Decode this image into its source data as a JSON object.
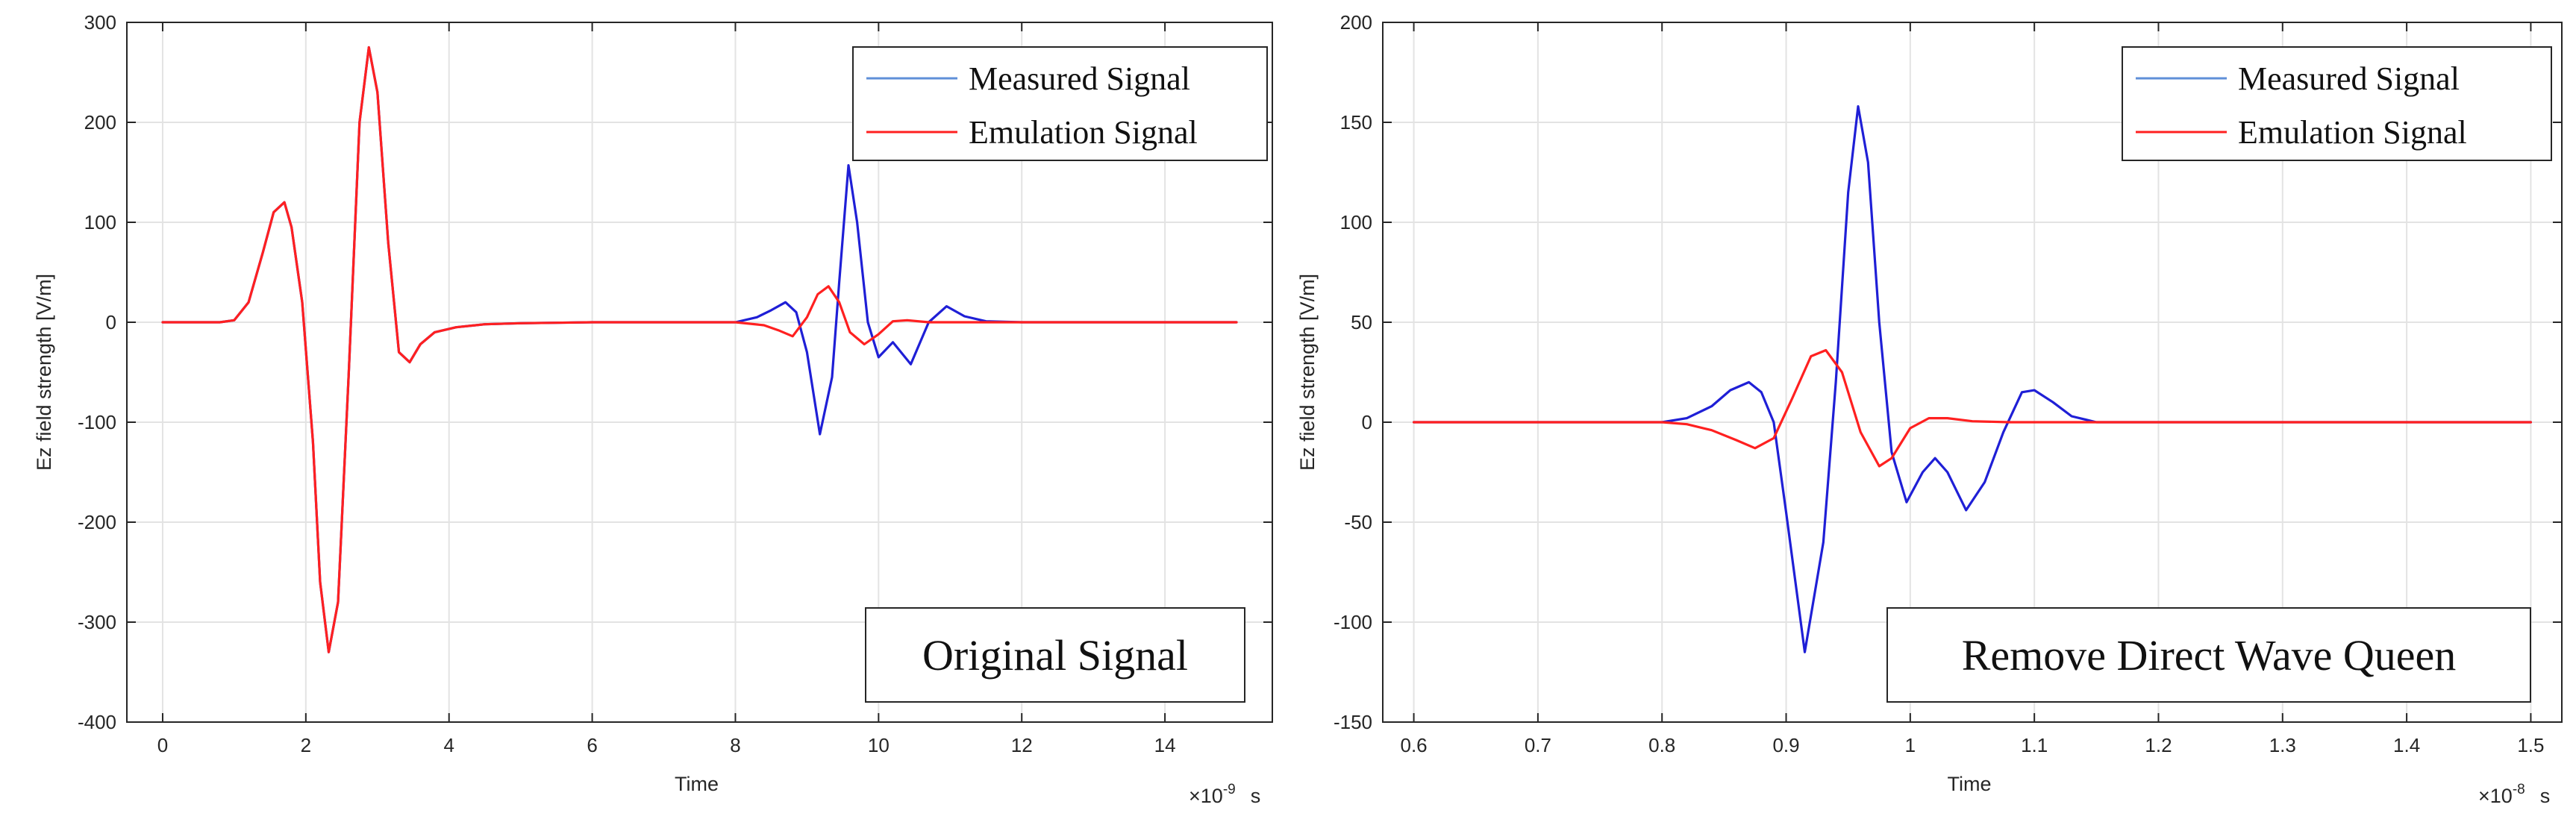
{
  "figure": {
    "panels": [
      "left",
      "right"
    ]
  },
  "chart_data": [
    {
      "type": "line",
      "id": "left",
      "title": "",
      "xlabel": "Time",
      "ylabel": "Ez field strength [V/m]",
      "xlim": [
        -0.5,
        15.5
      ],
      "ylim": [
        -400,
        300
      ],
      "xticks": [
        0,
        2,
        4,
        6,
        8,
        10,
        12,
        14
      ],
      "yticks": [
        -400,
        -300,
        -200,
        -100,
        0,
        100,
        200,
        300
      ],
      "xticklabels": [
        "0",
        "2",
        "4",
        "6",
        "8",
        "10",
        "12",
        "14"
      ],
      "yticklabels": [
        "-400",
        "-300",
        "-200",
        "-100",
        "0",
        "100",
        "200",
        "300"
      ],
      "x_exponent": {
        "mult": "×10",
        "exp": "-9",
        "unit": "s"
      },
      "grid": true,
      "legend": {
        "position": "top-right",
        "entries": [
          "Measured Signal",
          "Emulation Signal"
        ]
      },
      "annotation": "Original Signal",
      "series": [
        {
          "name": "Measured Signal",
          "color": "#1f1fd6",
          "x": [
            0.0,
            0.8,
            1.0,
            1.2,
            1.4,
            1.55,
            1.7,
            1.8,
            1.95,
            2.1,
            2.2,
            2.32,
            2.45,
            2.6,
            2.75,
            2.88,
            3.0,
            3.15,
            3.3,
            3.45,
            3.6,
            3.8,
            4.1,
            4.5,
            5.0,
            6.0,
            7.0,
            8.0,
            8.3,
            8.5,
            8.7,
            8.85,
            9.0,
            9.18,
            9.35,
            9.45,
            9.58,
            9.7,
            9.85,
            10.0,
            10.2,
            10.45,
            10.7,
            10.95,
            11.2,
            11.5,
            12.0,
            13.0,
            14.0,
            15.0
          ],
          "y": [
            0,
            0,
            2,
            20,
            70,
            110,
            120,
            95,
            20,
            -120,
            -260,
            -330,
            -280,
            -50,
            200,
            275,
            230,
            80,
            -30,
            -40,
            -22,
            -10,
            -5,
            -2,
            -1,
            0,
            0,
            0,
            5,
            12,
            20,
            10,
            -30,
            -112,
            -55,
            40,
            157,
            100,
            0,
            -35,
            -20,
            -42,
            0,
            16,
            6,
            1,
            0,
            0,
            0,
            0
          ]
        },
        {
          "name": "Emulation Signal",
          "color": "#ff2020",
          "x": [
            0.0,
            0.8,
            1.0,
            1.2,
            1.4,
            1.55,
            1.7,
            1.8,
            1.95,
            2.1,
            2.2,
            2.32,
            2.45,
            2.6,
            2.75,
            2.88,
            3.0,
            3.15,
            3.3,
            3.45,
            3.6,
            3.8,
            4.1,
            4.5,
            5.0,
            6.0,
            7.0,
            8.0,
            8.4,
            8.6,
            8.8,
            9.0,
            9.15,
            9.3,
            9.45,
            9.6,
            9.8,
            10.0,
            10.2,
            10.4,
            10.7,
            11.0,
            11.5,
            12.0,
            13.0,
            14.0,
            15.0
          ],
          "y": [
            0,
            0,
            2,
            20,
            70,
            110,
            120,
            95,
            20,
            -120,
            -260,
            -330,
            -280,
            -50,
            200,
            275,
            230,
            80,
            -30,
            -40,
            -22,
            -10,
            -5,
            -2,
            -1,
            0,
            0,
            0,
            -3,
            -8,
            -14,
            5,
            28,
            36,
            20,
            -10,
            -22,
            -12,
            1,
            2,
            0,
            0,
            0,
            0,
            0,
            0,
            0
          ]
        }
      ]
    },
    {
      "type": "line",
      "id": "right",
      "title": "",
      "xlabel": "Time",
      "ylabel": "Ez field strength [V/m]",
      "xlim": [
        0.575,
        1.525
      ],
      "ylim": [
        -150,
        200
      ],
      "xticks": [
        0.6,
        0.7,
        0.8,
        0.9,
        1.0,
        1.1,
        1.2,
        1.3,
        1.4,
        1.5
      ],
      "yticks": [
        -150,
        -100,
        -50,
        0,
        50,
        100,
        150,
        200
      ],
      "xticklabels": [
        "0.6",
        "0.7",
        "0.8",
        "0.9",
        "1",
        "1.1",
        "1.2",
        "1.3",
        "1.4",
        "1.5"
      ],
      "yticklabels": [
        "-150",
        "-100",
        "-50",
        "0",
        "50",
        "100",
        "150",
        "200"
      ],
      "x_exponent": {
        "mult": "×10",
        "exp": "-8",
        "unit": "s"
      },
      "grid": true,
      "legend": {
        "position": "top-right",
        "entries": [
          "Measured Signal",
          "Emulation Signal"
        ]
      },
      "annotation": "Remove Direct Wave Queen",
      "series": [
        {
          "name": "Measured Signal",
          "color": "#1f1fd6",
          "x": [
            0.6,
            0.7,
            0.8,
            0.82,
            0.84,
            0.855,
            0.87,
            0.88,
            0.89,
            0.9,
            0.915,
            0.93,
            0.94,
            0.95,
            0.958,
            0.966,
            0.975,
            0.985,
            0.997,
            1.01,
            1.02,
            1.03,
            1.045,
            1.06,
            1.075,
            1.09,
            1.1,
            1.115,
            1.13,
            1.15,
            1.2,
            1.3,
            1.4,
            1.5
          ],
          "y": [
            0,
            0,
            0,
            2,
            8,
            16,
            20,
            15,
            0,
            -45,
            -115,
            -60,
            20,
            115,
            158,
            130,
            50,
            -15,
            -40,
            -25,
            -18,
            -25,
            -44,
            -30,
            -5,
            15,
            16,
            10,
            3,
            0,
            0,
            0,
            0,
            0
          ]
        },
        {
          "name": "Emulation Signal",
          "color": "#ff2020",
          "x": [
            0.6,
            0.7,
            0.8,
            0.82,
            0.84,
            0.86,
            0.875,
            0.89,
            0.905,
            0.92,
            0.932,
            0.945,
            0.96,
            0.975,
            0.985,
            1.0,
            1.015,
            1.03,
            1.05,
            1.08,
            1.1,
            1.2,
            1.3,
            1.4,
            1.5
          ],
          "y": [
            0,
            0,
            0,
            -1,
            -4,
            -9,
            -13,
            -8,
            12,
            33,
            36,
            25,
            -5,
            -22,
            -18,
            -3,
            2,
            2,
            0.5,
            0,
            0,
            0,
            0,
            0,
            0
          ]
        }
      ]
    }
  ]
}
